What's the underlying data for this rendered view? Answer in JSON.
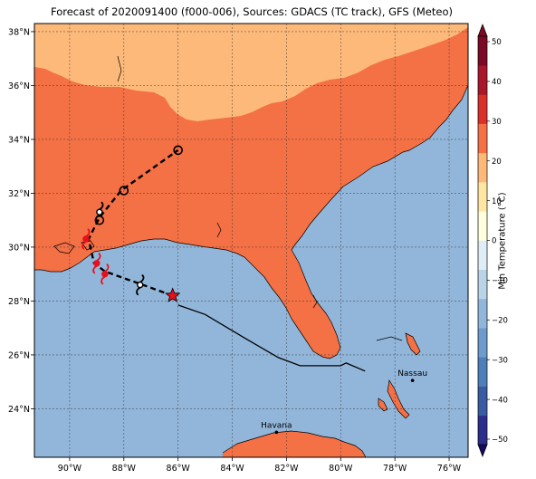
{
  "title": "Forecast of 2020091400 (f000-006), Sources: GDACS (TC track), GFS (Meteo)",
  "map": {
    "lon_range": [
      -91.3,
      -75.3
    ],
    "lat_range": [
      22.2,
      38.3
    ],
    "x_ticks": [
      {
        "value": -90,
        "label": "90°W"
      },
      {
        "value": -88,
        "label": "88°W"
      },
      {
        "value": -86,
        "label": "86°W"
      },
      {
        "value": -84,
        "label": "84°W"
      },
      {
        "value": -82,
        "label": "82°W"
      },
      {
        "value": -80,
        "label": "80°W"
      },
      {
        "value": -78,
        "label": "78°W"
      },
      {
        "value": -76,
        "label": "76°W"
      }
    ],
    "y_ticks": [
      {
        "value": 24,
        "label": "24°N"
      },
      {
        "value": 26,
        "label": "26°N"
      },
      {
        "value": 28,
        "label": "28°N"
      },
      {
        "value": 30,
        "label": "30°N"
      },
      {
        "value": 32,
        "label": "32°N"
      },
      {
        "value": 34,
        "label": "34°N"
      },
      {
        "value": 36,
        "label": "36°N"
      },
      {
        "value": 38,
        "label": "38°N"
      }
    ],
    "grid": true,
    "ocean_color": "#92b6da",
    "land_warm_color": "#f47045",
    "land_cool_color": "#fdb97a",
    "cities": [
      {
        "name": "Havana",
        "lon": -82.37,
        "lat": 23.13
      },
      {
        "name": "Nassau",
        "lon": -77.35,
        "lat": 25.05
      }
    ]
  },
  "colorbar": {
    "label": "Min Temperature (°C)",
    "min": -50,
    "max": 50,
    "ticks": [
      "50",
      "40",
      "30",
      "20",
      "10",
      "0",
      "−10",
      "−20",
      "−30",
      "−40",
      "−50"
    ],
    "colors_low_to_high": [
      "#2c2f8a",
      "#3a5ba0",
      "#4d7fb8",
      "#6d9ccb",
      "#92b6da",
      "#b9d3e8",
      "#dfeef6",
      "#ffffdf",
      "#ffe6a4",
      "#fdb97a",
      "#f47045",
      "#d9302a",
      "#a8172a",
      "#7a0a25"
    ]
  },
  "forecast_track": [
    {
      "lon": -86.2,
      "lat": 28.2
    },
    {
      "lon": -87.3,
      "lat": 28.6
    },
    {
      "lon": -88.7,
      "lat": 29.1
    },
    {
      "lon": -89.1,
      "lat": 29.4
    },
    {
      "lon": -89.3,
      "lat": 30.3
    },
    {
      "lon": -88.9,
      "lat": 31.1
    },
    {
      "lon": -88.1,
      "lat": 32.1
    },
    {
      "lon": -86.0,
      "lat": 33.6
    }
  ],
  "past_track": [
    {
      "lon": -86.0,
      "lat": 27.85
    },
    {
      "lon": -85.0,
      "lat": 27.5
    },
    {
      "lon": -83.5,
      "lat": 26.6
    },
    {
      "lon": -82.3,
      "lat": 25.9
    },
    {
      "lon": -81.5,
      "lat": 25.6
    },
    {
      "lon": -80.0,
      "lat": 25.6
    },
    {
      "lon": -79.8,
      "lat": 25.7
    },
    {
      "lon": -79.1,
      "lat": 25.4
    }
  ],
  "current_position": {
    "lon": -86.2,
    "lat": 28.2
  },
  "storm_symbols": [
    {
      "lon": -87.4,
      "lat": 28.6,
      "color": "#000000"
    },
    {
      "lon": -88.7,
      "lat": 29.0,
      "color": "#e8101a"
    },
    {
      "lon": -89.0,
      "lat": 29.4,
      "color": "#e8101a"
    },
    {
      "lon": -89.4,
      "lat": 30.3,
      "color": "#e8101a"
    },
    {
      "lon": -88.9,
      "lat": 31.3,
      "color": "#000000"
    }
  ],
  "track_circles": [
    {
      "lon": -88.9,
      "lat": 31.0
    },
    {
      "lon": -88.0,
      "lat": 32.1
    },
    {
      "lon": -86.0,
      "lat": 33.6
    }
  ]
}
